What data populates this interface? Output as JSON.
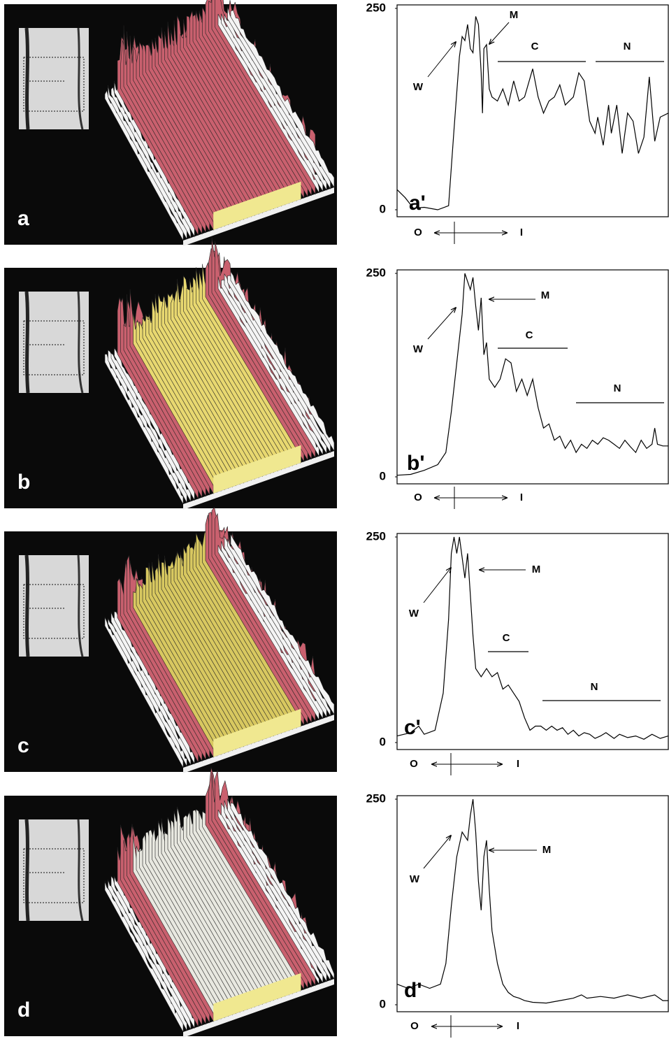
{
  "chart_data": [
    {
      "type": "line",
      "panel_label": "a",
      "label": "a'",
      "ylim": [
        0,
        250
      ],
      "yticks": [
        0,
        250
      ],
      "xlim": [
        0,
        100
      ],
      "annotations": [
        "W",
        "M",
        "C",
        "N"
      ],
      "x_axis_labels": [
        "O",
        "I"
      ],
      "color": "#000000",
      "x": [
        0,
        3,
        6,
        10,
        15,
        19,
        21,
        23,
        24,
        25,
        26,
        27,
        28,
        29,
        30,
        31,
        31.5,
        32,
        33,
        34,
        35,
        37,
        39,
        41,
        43,
        45,
        47,
        50,
        52,
        54,
        56,
        58,
        60,
        62,
        65,
        67,
        69,
        71,
        73,
        74,
        76,
        78,
        79,
        81,
        83,
        85,
        87,
        89,
        91,
        93,
        95,
        97,
        100
      ],
      "values": [
        25,
        15,
        2,
        3,
        0,
        5,
        100,
        190,
        215,
        210,
        230,
        200,
        195,
        240,
        230,
        170,
        120,
        200,
        205,
        150,
        140,
        135,
        150,
        130,
        160,
        135,
        140,
        175,
        140,
        120,
        135,
        140,
        155,
        130,
        140,
        170,
        160,
        110,
        95,
        115,
        80,
        130,
        95,
        130,
        70,
        120,
        110,
        70,
        90,
        165,
        85,
        115,
        120
      ]
    },
    {
      "type": "line",
      "panel_label": "b",
      "label": "b'",
      "ylim": [
        0,
        250
      ],
      "yticks": [
        0,
        250
      ],
      "xlim": [
        0,
        100
      ],
      "annotations": [
        "W",
        "M",
        "C",
        "N"
      ],
      "x_axis_labels": [
        "O",
        "I"
      ],
      "color": "#000000",
      "x": [
        0,
        5,
        10,
        15,
        18,
        20,
        22,
        24,
        25,
        27,
        28,
        29,
        30,
        31,
        32,
        33,
        34,
        36,
        38,
        40,
        42,
        44,
        46,
        48,
        50,
        52,
        54,
        56,
        58,
        60,
        62,
        64,
        66,
        68,
        70,
        72,
        74,
        76,
        78,
        80,
        82,
        84,
        86,
        88,
        90,
        92,
        94,
        95,
        96,
        98,
        100
      ],
      "values": [
        2,
        3,
        8,
        15,
        30,
        80,
        140,
        200,
        250,
        230,
        245,
        210,
        180,
        220,
        150,
        165,
        120,
        110,
        120,
        145,
        140,
        105,
        120,
        100,
        120,
        85,
        60,
        65,
        45,
        50,
        35,
        45,
        30,
        40,
        35,
        45,
        40,
        48,
        45,
        40,
        35,
        45,
        37,
        30,
        45,
        35,
        40,
        60,
        40,
        38,
        38
      ]
    },
    {
      "type": "line",
      "panel_label": "c",
      "label": "c'",
      "ylim": [
        0,
        250
      ],
      "yticks": [
        0,
        250
      ],
      "xlim": [
        0,
        100
      ],
      "annotations": [
        "W",
        "M",
        "C",
        "N"
      ],
      "x_axis_labels": [
        "O",
        "I"
      ],
      "color": "#000000",
      "x": [
        0,
        5,
        8,
        10,
        14,
        17,
        19,
        20,
        21,
        22,
        23,
        25,
        26,
        27,
        28,
        29,
        31,
        33,
        35,
        37,
        39,
        41,
        43,
        45,
        47,
        49,
        51,
        53,
        55,
        57,
        59,
        61,
        63,
        65,
        67,
        69,
        71,
        73,
        75,
        77,
        80,
        82,
        85,
        88,
        91,
        94,
        97,
        100
      ],
      "values": [
        8,
        12,
        20,
        10,
        15,
        60,
        150,
        230,
        250,
        230,
        250,
        200,
        230,
        180,
        130,
        90,
        80,
        90,
        80,
        85,
        65,
        70,
        60,
        50,
        30,
        15,
        20,
        20,
        15,
        20,
        15,
        18,
        10,
        15,
        8,
        12,
        10,
        5,
        8,
        12,
        5,
        10,
        6,
        8,
        4,
        10,
        5,
        8
      ]
    },
    {
      "type": "line",
      "panel_label": "d",
      "label": "d'",
      "ylim": [
        0,
        250
      ],
      "yticks": [
        0,
        250
      ],
      "xlim": [
        0,
        100
      ],
      "annotations": [
        "W",
        "M"
      ],
      "x_axis_labels": [
        "O",
        "I"
      ],
      "color": "#000000",
      "x": [
        0,
        4,
        8,
        12,
        16,
        18,
        20,
        22,
        24,
        26,
        27,
        28,
        29,
        30,
        31,
        32,
        33,
        34,
        35,
        37,
        39,
        41,
        43,
        45,
        47,
        50,
        55,
        60,
        65,
        68,
        70,
        75,
        80,
        85,
        90,
        95,
        98,
        100
      ],
      "values": [
        25,
        20,
        25,
        20,
        25,
        50,
        120,
        180,
        210,
        200,
        230,
        250,
        210,
        150,
        115,
        180,
        200,
        140,
        90,
        50,
        25,
        15,
        10,
        8,
        5,
        3,
        2,
        5,
        8,
        12,
        8,
        10,
        8,
        12,
        8,
        12,
        5,
        5
      ]
    }
  ]
}
